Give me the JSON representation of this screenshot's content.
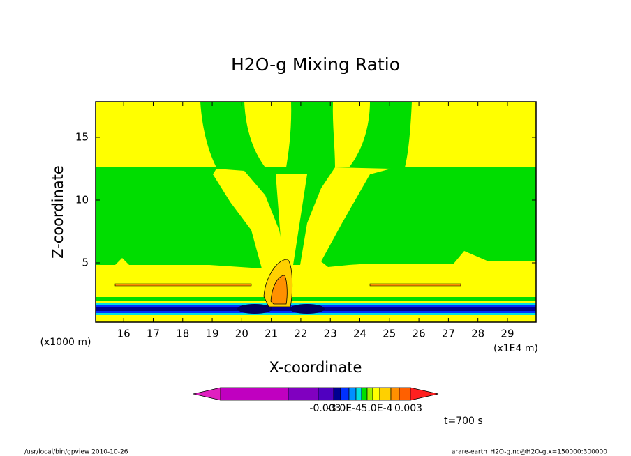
{
  "chart_data": {
    "type": "contour",
    "title": "H2O-g Mixing Ratio",
    "xlabel": "X-coordinate",
    "ylabel": "Z-coordinate",
    "x_unit": "(x1E4 m)",
    "y_unit": "(x1000 m)",
    "xlim": [
      15.05,
      29.97
    ],
    "ylim": [
      0.28,
      17.83
    ],
    "xticks": [
      16,
      17,
      18,
      19,
      20,
      21,
      22,
      23,
      24,
      25,
      26,
      27,
      28,
      29
    ],
    "yticks": [
      5,
      10,
      15
    ],
    "colorbar": {
      "colors": [
        "#e020c0",
        "#c000c0",
        "#8000c0",
        "#5000c0",
        "#000090",
        "#0030ff",
        "#0090ff",
        "#00e0e0",
        "#00e000",
        "#a0f000",
        "#ffff00",
        "#ffd000",
        "#ff9000",
        "#ff6000",
        "#ff2020"
      ],
      "labels": [
        "-0.003",
        "-3.0E-4",
        "5.0E-4",
        "0.003"
      ]
    },
    "annotation": "t=700 s",
    "footer_left": "/usr/local/bin/gpview  2010-10-26",
    "footer_right": "arare-earth_H2O-g.nc@H2O-g,x=150000:300000"
  }
}
